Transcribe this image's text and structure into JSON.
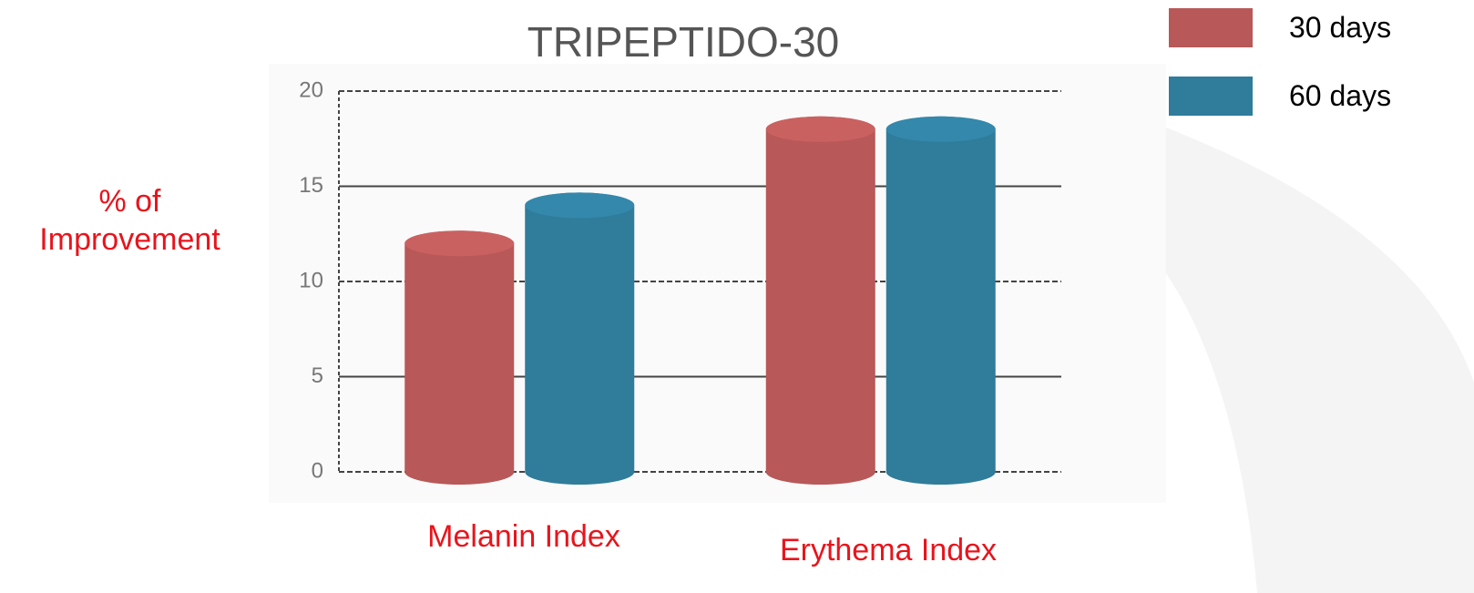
{
  "chart_data": {
    "type": "bar",
    "title": "TRIPEPTIDO-30",
    "y_label": "% of Improvement",
    "categories": [
      "Melanin Index",
      "Erythema Index"
    ],
    "series": [
      {
        "name": "30 days",
        "color": "#b85858",
        "values": [
          12,
          18
        ]
      },
      {
        "name": "60 days",
        "color": "#2f7c9b",
        "values": [
          14,
          18
        ]
      }
    ],
    "ylim": [
      0,
      20
    ],
    "yticks": [
      0,
      5,
      10,
      15,
      20
    ],
    "grid": true,
    "legend": "top-right"
  }
}
